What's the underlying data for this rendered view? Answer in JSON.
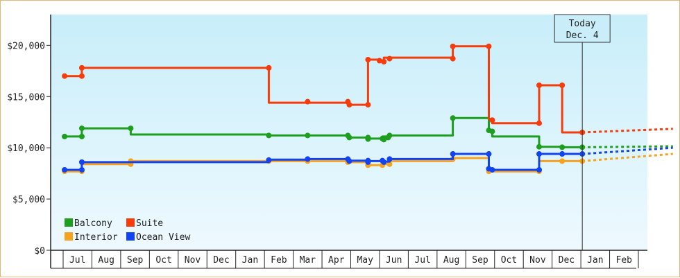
{
  "chart_data": {
    "type": "line",
    "y_ticks": [
      "$0",
      "$5,000",
      "$10,000",
      "$15,000",
      "$20,000"
    ],
    "y_tick_values": [
      0,
      5000,
      10000,
      15000,
      20000
    ],
    "ylim": [
      0,
      23000
    ],
    "months": [
      "Jul",
      "Aug",
      "Sep",
      "Oct",
      "Nov",
      "Dec",
      "Jan",
      "Feb",
      "Mar",
      "Apr",
      "May",
      "Jun",
      "Jul",
      "Aug",
      "Sep",
      "Oct",
      "Nov",
      "Dec",
      "Jan",
      "Feb"
    ],
    "today": {
      "line1": "Today",
      "line2": "Dec. 4"
    },
    "legend": [
      "Balcony",
      "Suite",
      "Interior",
      "Ocean View"
    ],
    "grid": false,
    "series": [
      {
        "name": "Balcony",
        "color": "#1e9e1e",
        "points": [
          [
            -0.45,
            11100
          ],
          [
            0.15,
            11100
          ],
          [
            0.15,
            11900
          ],
          [
            1.85,
            11900
          ],
          [
            1.85,
            11300
          ],
          [
            6.65,
            11300
          ],
          [
            6.65,
            11200
          ],
          [
            8.0,
            11200
          ],
          [
            9.4,
            11200
          ],
          [
            9.4,
            11000
          ],
          [
            10.1,
            11000
          ],
          [
            10.1,
            10900
          ],
          [
            10.6,
            10900
          ],
          [
            10.6,
            11100
          ],
          [
            10.8,
            11100
          ],
          [
            10.8,
            11000
          ],
          [
            10.85,
            11000
          ],
          [
            10.85,
            11200
          ],
          [
            13.05,
            11200
          ],
          [
            13.05,
            12900
          ],
          [
            14.3,
            12900
          ],
          [
            14.3,
            11700
          ],
          [
            14.42,
            11700
          ],
          [
            14.42,
            11100
          ],
          [
            16.05,
            11100
          ],
          [
            16.05,
            10100
          ],
          [
            16.85,
            10100
          ],
          [
            16.85,
            10050
          ],
          [
            17.55,
            10050
          ]
        ],
        "markers": [
          [
            -0.45,
            11100
          ],
          [
            0.15,
            11100
          ],
          [
            0.15,
            11900
          ],
          [
            1.85,
            11900
          ],
          [
            6.65,
            11200
          ],
          [
            8.0,
            11200
          ],
          [
            9.4,
            11200
          ],
          [
            9.45,
            11000
          ],
          [
            10.1,
            11000
          ],
          [
            10.1,
            10850
          ],
          [
            10.6,
            10900
          ],
          [
            10.65,
            10800
          ],
          [
            10.8,
            11000
          ],
          [
            10.85,
            11200
          ],
          [
            13.05,
            12900
          ],
          [
            14.3,
            11700
          ],
          [
            14.42,
            11600
          ],
          [
            16.05,
            10100
          ],
          [
            16.85,
            10050
          ],
          [
            17.55,
            10050
          ]
        ],
        "forecast": [
          [
            17.55,
            10050
          ],
          [
            20.7,
            10150
          ]
        ]
      },
      {
        "name": "Suite",
        "color": "#f53c0a",
        "points": [
          [
            -0.45,
            17000
          ],
          [
            0.15,
            17000
          ],
          [
            0.15,
            17800
          ],
          [
            6.65,
            17800
          ],
          [
            6.65,
            14400
          ],
          [
            8.0,
            14400
          ],
          [
            9.4,
            14400
          ],
          [
            9.4,
            14200
          ],
          [
            10.1,
            14200
          ],
          [
            10.1,
            18600
          ],
          [
            10.5,
            18600
          ],
          [
            10.5,
            18400
          ],
          [
            10.65,
            18400
          ],
          [
            10.65,
            18800
          ],
          [
            10.85,
            18800
          ],
          [
            13.05,
            18800
          ],
          [
            13.05,
            19900
          ],
          [
            14.3,
            19900
          ],
          [
            14.3,
            12800
          ],
          [
            14.42,
            12800
          ],
          [
            14.42,
            12400
          ],
          [
            16.05,
            12400
          ],
          [
            16.05,
            16100
          ],
          [
            16.85,
            16100
          ],
          [
            16.85,
            11500
          ],
          [
            17.55,
            11500
          ]
        ],
        "markers": [
          [
            -0.45,
            17000
          ],
          [
            0.15,
            17000
          ],
          [
            0.15,
            17800
          ],
          [
            6.65,
            17800
          ],
          [
            8.0,
            14500
          ],
          [
            9.4,
            14500
          ],
          [
            9.45,
            14200
          ],
          [
            10.1,
            14200
          ],
          [
            10.1,
            18600
          ],
          [
            10.5,
            18500
          ],
          [
            10.65,
            18400
          ],
          [
            10.85,
            18700
          ],
          [
            13.05,
            18700
          ],
          [
            13.05,
            19900
          ],
          [
            14.3,
            19900
          ],
          [
            14.42,
            12700
          ],
          [
            16.05,
            12400
          ],
          [
            16.05,
            16100
          ],
          [
            16.85,
            16100
          ],
          [
            17.55,
            11500
          ]
        ],
        "forecast": [
          [
            17.55,
            11500
          ],
          [
            20.7,
            11850
          ]
        ]
      },
      {
        "name": "Interior",
        "color": "#f5a31e",
        "points": [
          [
            -0.45,
            7700
          ],
          [
            0.15,
            7700
          ],
          [
            0.15,
            8400
          ],
          [
            1.85,
            8400
          ],
          [
            1.85,
            8700
          ],
          [
            6.65,
            8700
          ],
          [
            8.0,
            8700
          ],
          [
            9.4,
            8700
          ],
          [
            9.4,
            8600
          ],
          [
            10.1,
            8600
          ],
          [
            10.1,
            8300
          ],
          [
            10.6,
            8300
          ],
          [
            10.6,
            8400
          ],
          [
            10.85,
            8400
          ],
          [
            10.85,
            8700
          ],
          [
            13.05,
            8700
          ],
          [
            13.05,
            9000
          ],
          [
            14.3,
            9000
          ],
          [
            14.3,
            7700
          ],
          [
            16.05,
            7700
          ],
          [
            16.05,
            8700
          ],
          [
            17.55,
            8700
          ]
        ],
        "markers": [
          [
            -0.45,
            7700
          ],
          [
            0.15,
            7700
          ],
          [
            1.85,
            8400
          ],
          [
            1.85,
            8700
          ],
          [
            6.65,
            8700
          ],
          [
            8.0,
            8700
          ],
          [
            9.4,
            8600
          ],
          [
            10.1,
            8300
          ],
          [
            10.6,
            8300
          ],
          [
            10.85,
            8400
          ],
          [
            13.05,
            8900
          ],
          [
            14.3,
            7700
          ],
          [
            16.05,
            7700
          ],
          [
            16.85,
            8700
          ],
          [
            17.55,
            8700
          ]
        ],
        "forecast": [
          [
            17.55,
            8700
          ],
          [
            20.7,
            9400
          ]
        ]
      },
      {
        "name": "Ocean View",
        "color": "#1243f0",
        "points": [
          [
            -0.45,
            7850
          ],
          [
            0.15,
            7850
          ],
          [
            0.15,
            8600
          ],
          [
            6.65,
            8600
          ],
          [
            6.65,
            8850
          ],
          [
            8.0,
            8850
          ],
          [
            8.0,
            8900
          ],
          [
            9.4,
            8900
          ],
          [
            9.4,
            8750
          ],
          [
            10.1,
            8750
          ],
          [
            10.1,
            8700
          ],
          [
            10.6,
            8700
          ],
          [
            10.6,
            8650
          ],
          [
            10.85,
            8650
          ],
          [
            10.85,
            8900
          ],
          [
            13.05,
            8900
          ],
          [
            13.05,
            9400
          ],
          [
            14.3,
            9400
          ],
          [
            14.3,
            7900
          ],
          [
            14.42,
            7900
          ],
          [
            14.42,
            7850
          ],
          [
            16.05,
            7850
          ],
          [
            16.05,
            9400
          ],
          [
            17.55,
            9400
          ]
        ],
        "markers": [
          [
            -0.45,
            7850
          ],
          [
            0.15,
            7850
          ],
          [
            0.15,
            8600
          ],
          [
            6.65,
            8800
          ],
          [
            8.0,
            8900
          ],
          [
            9.4,
            8900
          ],
          [
            9.45,
            8700
          ],
          [
            10.1,
            8750
          ],
          [
            10.1,
            8600
          ],
          [
            10.6,
            8750
          ],
          [
            10.65,
            8600
          ],
          [
            10.85,
            8900
          ],
          [
            13.05,
            9400
          ],
          [
            14.3,
            9400
          ],
          [
            14.3,
            7950
          ],
          [
            14.42,
            7850
          ],
          [
            16.05,
            7850
          ],
          [
            16.05,
            9400
          ],
          [
            16.85,
            9400
          ],
          [
            17.55,
            9400
          ]
        ],
        "forecast": [
          [
            17.55,
            9400
          ],
          [
            20.7,
            10000
          ]
        ]
      }
    ]
  }
}
